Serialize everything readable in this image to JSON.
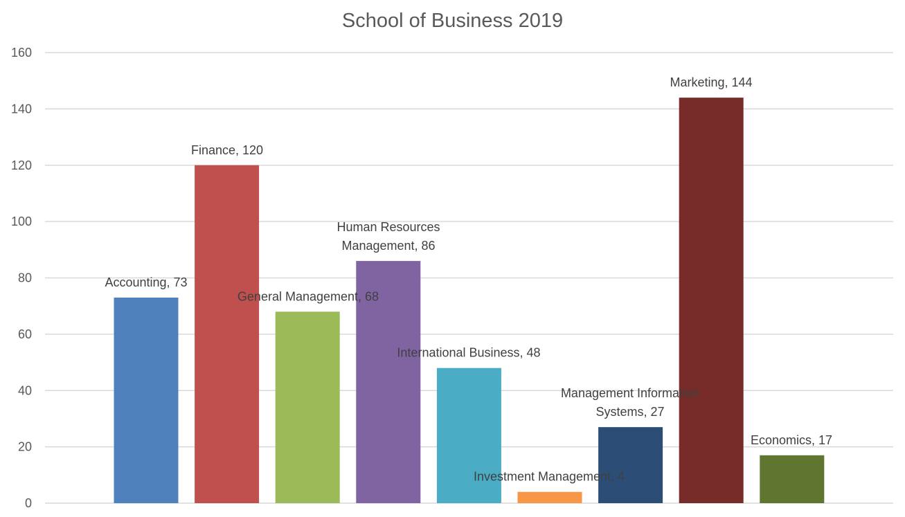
{
  "chart_data": {
    "type": "bar",
    "title": "School of Business 2019",
    "xlabel": "",
    "ylabel": "",
    "ylim": [
      0,
      160
    ],
    "yticks": [
      0,
      20,
      40,
      60,
      80,
      100,
      120,
      140,
      160
    ],
    "grid": true,
    "legend": "none",
    "categories": [
      "Accounting",
      "Finance",
      "General Management",
      "Human Resources Management",
      "International Business",
      "Investment Management",
      "Management Information Systems",
      "Marketing",
      "Economics"
    ],
    "values": [
      73,
      120,
      68,
      86,
      48,
      4,
      27,
      144,
      17
    ],
    "data_labels": [
      [
        "Accounting, 73"
      ],
      [
        "Finance, 120"
      ],
      [
        "General Management, 68"
      ],
      [
        "Human Resources",
        "Management, 86"
      ],
      [
        "International Business, 48"
      ],
      [
        "Investment Management, 4"
      ],
      [
        "Management Information",
        "Systems, 27"
      ],
      [
        "Marketing, 144"
      ],
      [
        "Economics, 17"
      ]
    ],
    "colors": [
      "#4f81bd",
      "#c0504d",
      "#9bbb59",
      "#8064a2",
      "#4bacc6",
      "#f79646",
      "#2c4d75",
      "#772c2a",
      "#5f7530"
    ]
  }
}
